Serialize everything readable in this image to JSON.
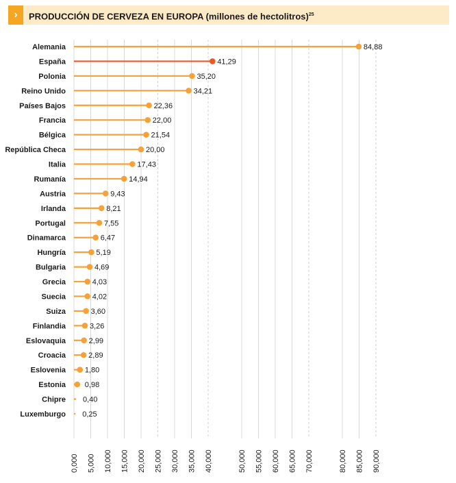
{
  "header": {
    "icon": "chevron-right-icon",
    "title": "PRODUCCIÓN DE CERVEZA EN EUROPA (millones de hectolitros)",
    "footnote": "25"
  },
  "colors": {
    "accent": "#f5a23a",
    "highlight": "#e8582a",
    "title_bg": "#fdebc8",
    "chevron_bg": "#f5a623",
    "grid": "#cfcfcf",
    "text": "#1a1a1a"
  },
  "chart_data": {
    "type": "lollipop",
    "title": "PRODUCCIÓN DE CERVEZA EN EUROPA (millones de hectolitros)",
    "categories": [
      "Alemania",
      "España",
      "Polonia",
      "Reino Unido",
      "Países Bajos",
      "Francia",
      "Bélgica",
      "República Checa",
      "Italia",
      "Rumanía",
      "Austria",
      "Irlanda",
      "Portugal",
      "Dinamarca",
      "Hungría",
      "Bulgaria",
      "Grecia",
      "Suecia",
      "Suiza",
      "Finlandia",
      "Eslovaquia",
      "Croacia",
      "Eslovenia",
      "Estonia",
      "Chipre",
      "Luxemburgo"
    ],
    "values": [
      84.88,
      41.29,
      35.2,
      34.21,
      22.36,
      22.0,
      21.54,
      20.0,
      17.43,
      14.94,
      9.43,
      8.21,
      7.55,
      6.47,
      5.19,
      4.69,
      4.03,
      4.02,
      3.6,
      3.26,
      2.99,
      2.89,
      1.8,
      0.98,
      0.4,
      0.25
    ],
    "value_labels": [
      "84,88",
      "41,29",
      "35,20",
      "34,21",
      "22,36",
      "22,00",
      "21,54",
      "20,00",
      "17,43",
      "14,94",
      "9,43",
      "8,21",
      "7,55",
      "6,47",
      "5,19",
      "4,69",
      "4,03",
      "4,02",
      "3,60",
      "3,26",
      "2,99",
      "2,89",
      "1,80",
      "0,98",
      "0,40",
      "0,25"
    ],
    "highlight": "España",
    "x_ticks": [
      0,
      5,
      10,
      15,
      20,
      25,
      30,
      35,
      40,
      50,
      55,
      60,
      65,
      70,
      80,
      85,
      90
    ],
    "x_tick_labels": [
      "0,000",
      "5,000",
      "10,000",
      "15,000",
      "20,000",
      "25,000",
      "30,000",
      "35,000",
      "40,000",
      "50,000",
      "55,000",
      "60,000",
      "65,000",
      "70,000",
      "80,000",
      "85,000",
      "90,000"
    ],
    "dashed_grid_at": [
      25,
      40,
      70,
      90
    ],
    "xlabel": "",
    "ylabel": "",
    "legend": "none"
  }
}
